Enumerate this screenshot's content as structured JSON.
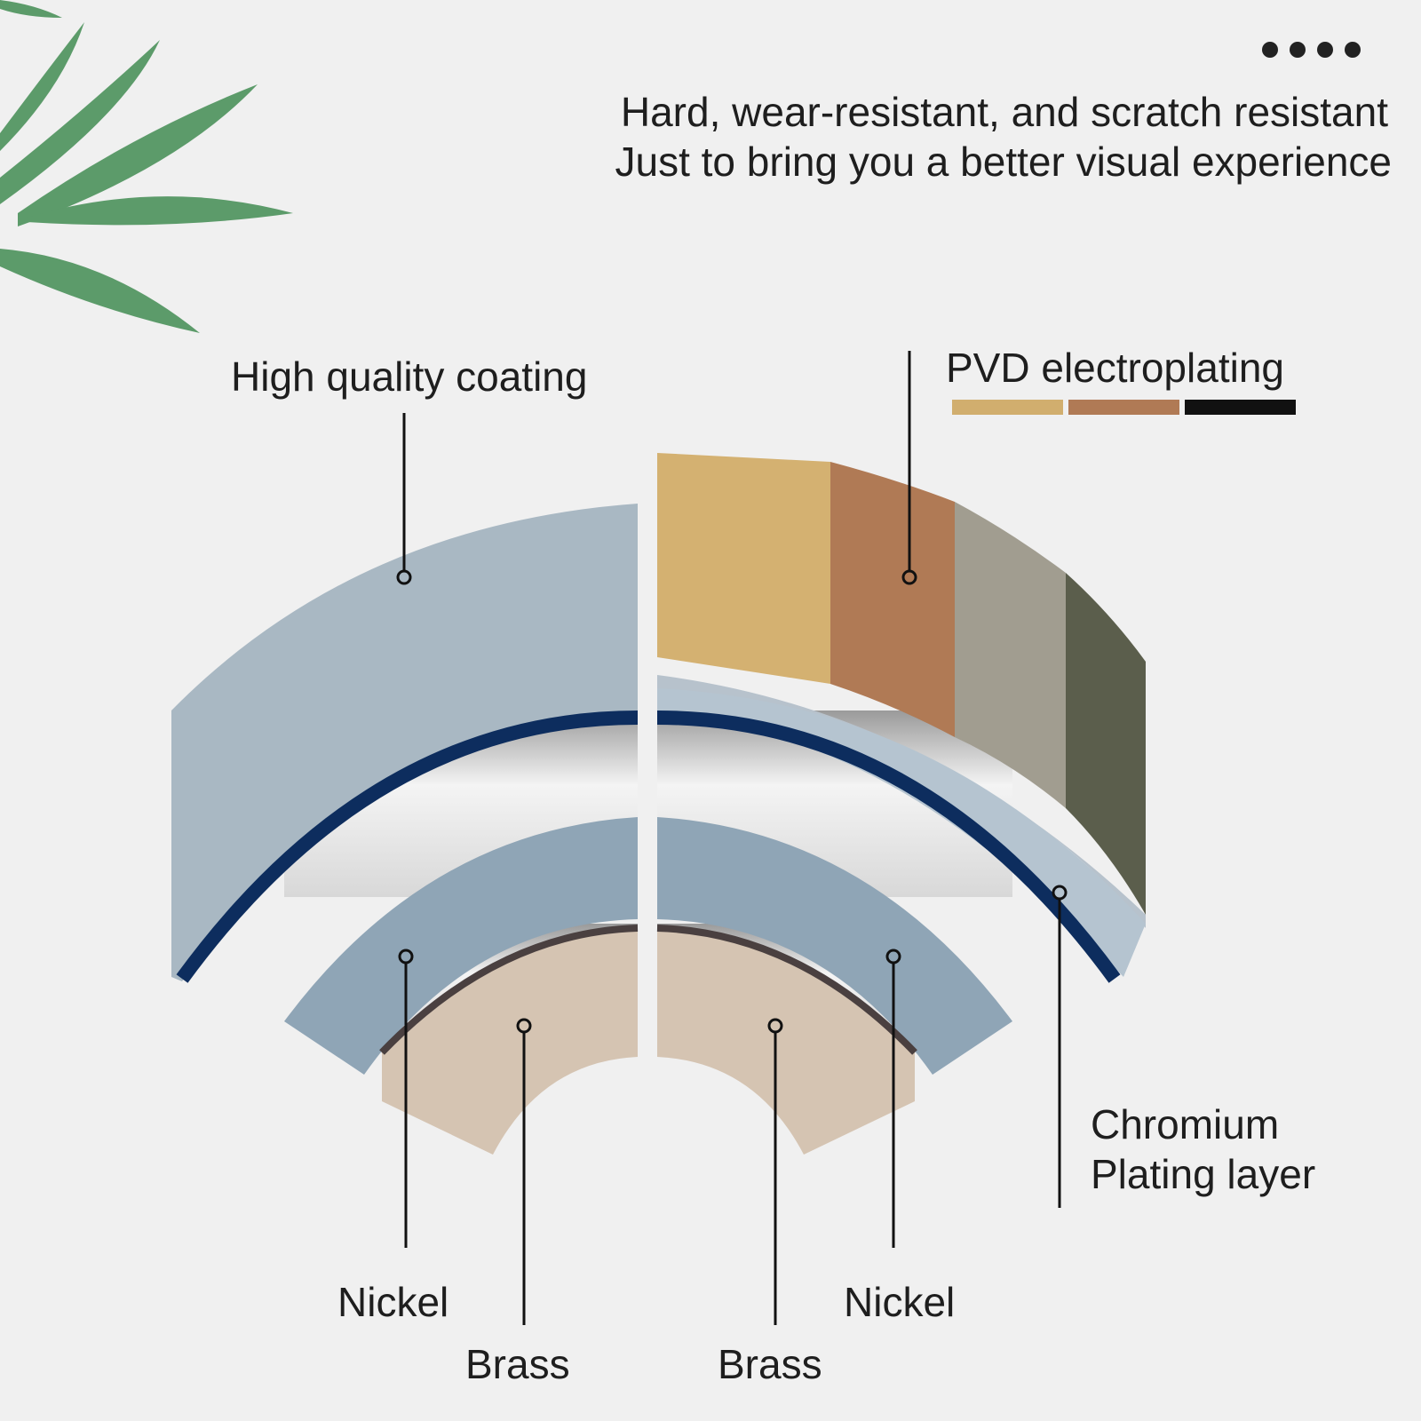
{
  "header": {
    "lines": [
      "Hard, wear-resistant, and scratch resistant",
      "Just to bring you a better visual experience"
    ]
  },
  "labels": {
    "coating": "High quality coating",
    "pvd": "PVD electroplating",
    "chromium": [
      "Chromium",
      "Plating layer"
    ],
    "nickel_left": "Nickel",
    "brass_left": "Brass",
    "brass_right": "Brass",
    "nickel_right": "Nickel"
  }
}
